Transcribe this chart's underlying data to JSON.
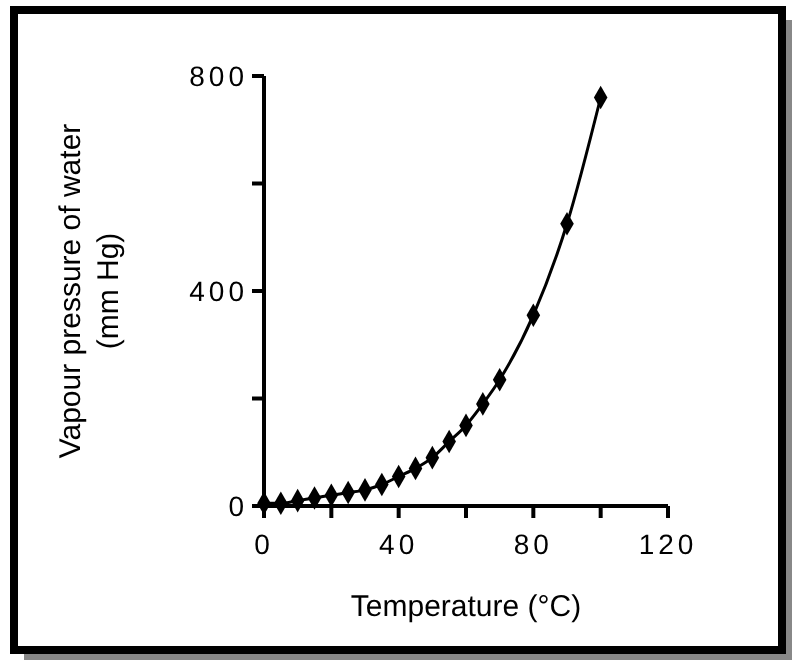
{
  "chart_data": {
    "type": "line",
    "xlabel": "Temperature (°C)",
    "ylabel": "Vapour pressure of water\n(mm Hg)",
    "x": [
      0,
      5,
      10,
      15,
      20,
      25,
      30,
      35,
      40,
      45,
      50,
      55,
      60,
      65,
      70,
      80,
      90,
      100
    ],
    "series": [
      {
        "color": "#000000",
        "values": [
          5,
          5,
          10,
          15,
          20,
          25,
          30,
          40,
          55,
          70,
          90,
          120,
          150,
          190,
          235,
          355,
          525,
          760
        ]
      }
    ],
    "xlim": [
      0,
      120
    ],
    "xticks": [
      0,
      {
        "value": 20,
        "label": null
      },
      40,
      {
        "value": 60,
        "label": null
      },
      80,
      {
        "value": 100,
        "label": null
      },
      120
    ],
    "ylim": [
      0,
      800
    ],
    "yticks": [
      0,
      {
        "value": 200,
        "label": null
      },
      400,
      {
        "value": 600,
        "label": null
      },
      800
    ],
    "marker": "diamond",
    "line_style": "solid"
  }
}
